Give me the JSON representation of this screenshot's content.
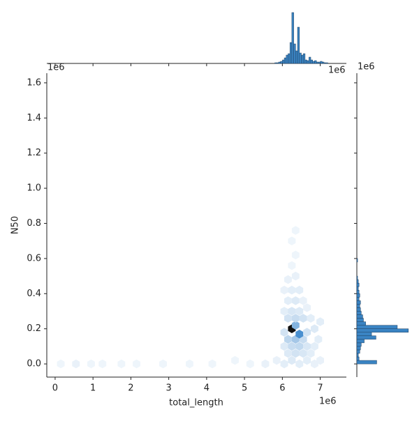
{
  "chart_data": {
    "type": "hexbin_joint",
    "x_label": "total_length",
    "y_label": "N50",
    "x_offset": "1e6",
    "y_offset": "1e6",
    "xlim": [
      -0.22,
      7.69
    ],
    "xticks": [
      0,
      1,
      2,
      3,
      4,
      5,
      6,
      7
    ],
    "ylim": [
      -0.075,
      1.655
    ],
    "yticks": [
      {
        "value": 0,
        "label": "0.0"
      },
      0.2,
      0.4,
      0.6,
      0.8,
      {
        "value": 1,
        "label": "1.0"
      },
      1.2,
      1.4,
      1.6
    ],
    "cmap": [
      "#f4f8fc",
      "#4a90d0",
      "#111111"
    ],
    "hex_x": [
      0.15,
      0.55,
      0.95,
      1.25,
      1.75,
      2.15,
      2.85,
      3.55,
      4.15,
      4.75,
      5.15,
      5.55,
      5.85,
      6.05,
      6.25,
      6.45,
      6.65,
      6.85,
      7.0,
      6.15,
      6.35,
      6.55,
      6.75,
      6.05,
      6.25,
      6.45,
      6.65,
      6.85,
      6.15,
      6.35,
      6.55,
      6.95,
      6.05,
      6.25,
      6.45,
      6.35,
      6.65,
      6.85,
      7.0,
      6.15,
      6.35,
      6.55,
      6.75,
      6.05,
      6.25,
      6.45,
      6.65,
      6.15,
      6.35,
      6.55,
      6.05,
      6.25,
      6.45,
      6.15,
      6.35,
      6.25,
      6.35,
      6.25,
      6.35
    ],
    "hex_y": [
      0,
      0,
      0,
      0,
      0,
      0,
      0,
      0,
      0,
      0.02,
      0,
      0,
      0.02,
      0,
      0.02,
      0,
      0.02,
      0,
      0.02,
      0.06,
      0.06,
      0.06,
      0.06,
      0.1,
      0.1,
      0.1,
      0.1,
      0.1,
      0.14,
      0.14,
      0.14,
      0.14,
      0.18,
      0.2,
      0.17,
      0.22,
      0.18,
      0.2,
      0.24,
      0.26,
      0.26,
      0.26,
      0.26,
      0.3,
      0.3,
      0.3,
      0.32,
      0.36,
      0.36,
      0.36,
      0.42,
      0.42,
      0.42,
      0.48,
      0.5,
      0.56,
      0.62,
      0.7,
      0.76
    ],
    "hex_counts": [
      1,
      2,
      1,
      1,
      1,
      1,
      1,
      1,
      1,
      1,
      1,
      2,
      2,
      3,
      4,
      3,
      3,
      2,
      2,
      4,
      6,
      5,
      3,
      4,
      8,
      9,
      5,
      3,
      10,
      14,
      8,
      3,
      6,
      60,
      30,
      20,
      6,
      4,
      3,
      6,
      8,
      6,
      3,
      3,
      5,
      4,
      2,
      3,
      4,
      2,
      2,
      3,
      3,
      2,
      2,
      1,
      1,
      1,
      1
    ],
    "hist_color": "#3a84c3",
    "top_bins": [
      5.8,
      5.85,
      5.9,
      5.95,
      6.0,
      6.05,
      6.1,
      6.15,
      6.2,
      6.25,
      6.3,
      6.35,
      6.4,
      6.45,
      6.5,
      6.55,
      6.6,
      6.65,
      6.7,
      6.75,
      6.8,
      6.85,
      6.9,
      6.95,
      7.0,
      7.05,
      7.1,
      7.15,
      7.2
    ],
    "top_counts": [
      1,
      1,
      2,
      3,
      5,
      8,
      12,
      14,
      30,
      73,
      28,
      18,
      52,
      15,
      12,
      14,
      5,
      4,
      9,
      5,
      3,
      4,
      2,
      2,
      3,
      2,
      1,
      1
    ],
    "top_ylim": [
      0,
      75
    ],
    "right_bins": [
      0,
      0.02,
      0.04,
      0.06,
      0.08,
      0.1,
      0.12,
      0.14,
      0.16,
      0.18,
      0.2,
      0.22,
      0.24,
      0.26,
      0.28,
      0.3,
      0.32,
      0.34,
      0.36,
      0.38,
      0.4,
      0.42,
      0.44,
      0.46,
      0.48,
      0.5,
      0.52,
      0.54,
      0.56,
      0.58,
      0.6
    ],
    "right_counts": [
      27,
      3,
      2,
      4,
      5,
      6,
      10,
      26,
      20,
      70,
      55,
      12,
      9,
      8,
      6,
      5,
      4,
      5,
      3,
      4,
      3,
      2,
      3,
      2,
      1,
      0,
      0,
      0,
      0,
      1
    ],
    "right_xlim": [
      0,
      75
    ]
  }
}
